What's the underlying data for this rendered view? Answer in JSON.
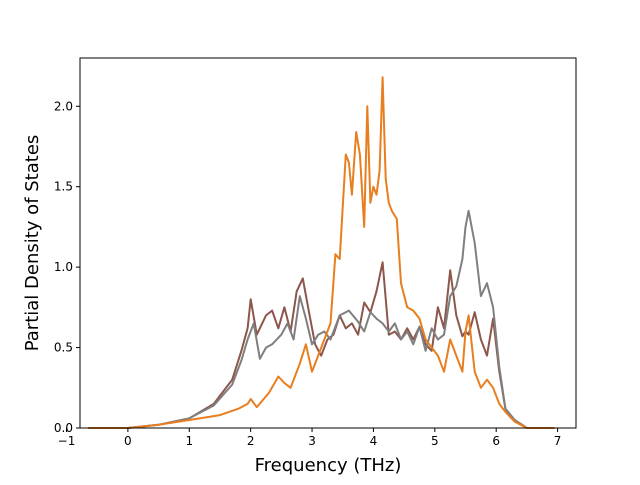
{
  "chart_data": {
    "type": "line",
    "title": "",
    "xlabel": "Frequency (THz)",
    "ylabel": "Partial Density of States",
    "xlim": [
      -0.78,
      7.3
    ],
    "ylim": [
      0,
      2.3
    ],
    "xticks": [
      -1,
      0,
      1,
      2,
      3,
      4,
      5,
      6,
      7
    ],
    "yticks": [
      0.0,
      0.5,
      1.0,
      1.5,
      2.0
    ],
    "xtick_labels": [
      "−1",
      "0",
      "1",
      "2",
      "3",
      "4",
      "5",
      "6",
      "7"
    ],
    "ytick_labels": [
      "0.0",
      "0.5",
      "1.0",
      "1.5",
      "2.0"
    ],
    "grid": false,
    "legend": "none",
    "series": [
      {
        "color": "#8c564b",
        "x": [
          -0.65,
          0.0,
          0.5,
          1.0,
          1.4,
          1.7,
          1.85,
          1.95,
          2.0,
          2.1,
          2.25,
          2.35,
          2.45,
          2.55,
          2.65,
          2.75,
          2.85,
          2.95,
          3.05,
          3.15,
          3.25,
          3.35,
          3.45,
          3.55,
          3.65,
          3.75,
          3.85,
          3.95,
          4.05,
          4.15,
          4.25,
          4.35,
          4.45,
          4.55,
          4.65,
          4.75,
          4.85,
          4.95,
          5.05,
          5.15,
          5.25,
          5.35,
          5.45,
          5.5,
          5.55,
          5.65,
          5.75,
          5.85,
          5.95,
          6.05,
          6.15,
          6.3,
          6.5,
          6.95
        ],
        "y": [
          0.0,
          0.0,
          0.02,
          0.06,
          0.15,
          0.3,
          0.48,
          0.62,
          0.8,
          0.58,
          0.7,
          0.73,
          0.62,
          0.75,
          0.6,
          0.85,
          0.93,
          0.72,
          0.52,
          0.45,
          0.55,
          0.58,
          0.7,
          0.62,
          0.65,
          0.58,
          0.78,
          0.72,
          0.85,
          1.03,
          0.58,
          0.6,
          0.55,
          0.62,
          0.55,
          0.63,
          0.52,
          0.48,
          0.75,
          0.62,
          0.98,
          0.7,
          0.57,
          0.6,
          0.58,
          0.72,
          0.55,
          0.45,
          0.68,
          0.35,
          0.12,
          0.05,
          0.0,
          0.0
        ]
      },
      {
        "color": "#7f7f7f",
        "x": [
          -0.65,
          0.0,
          0.5,
          1.0,
          1.4,
          1.7,
          1.85,
          1.95,
          2.05,
          2.15,
          2.25,
          2.35,
          2.5,
          2.6,
          2.7,
          2.8,
          2.9,
          3.0,
          3.1,
          3.2,
          3.3,
          3.45,
          3.6,
          3.75,
          3.85,
          3.95,
          4.05,
          4.15,
          4.25,
          4.35,
          4.45,
          4.55,
          4.65,
          4.75,
          4.85,
          4.95,
          5.05,
          5.15,
          5.25,
          5.35,
          5.45,
          5.5,
          5.55,
          5.65,
          5.75,
          5.85,
          5.95,
          6.05,
          6.15,
          6.3,
          6.5,
          6.95
        ],
        "y": [
          0.0,
          0.0,
          0.02,
          0.06,
          0.14,
          0.27,
          0.42,
          0.55,
          0.65,
          0.43,
          0.5,
          0.52,
          0.58,
          0.65,
          0.55,
          0.82,
          0.68,
          0.52,
          0.58,
          0.6,
          0.55,
          0.7,
          0.73,
          0.66,
          0.6,
          0.72,
          0.68,
          0.65,
          0.6,
          0.65,
          0.55,
          0.6,
          0.52,
          0.63,
          0.48,
          0.62,
          0.55,
          0.58,
          0.82,
          0.88,
          1.05,
          1.25,
          1.35,
          1.15,
          0.82,
          0.9,
          0.75,
          0.38,
          0.12,
          0.05,
          0.0,
          0.0
        ]
      },
      {
        "color": "#e87e1f",
        "x": [
          -0.65,
          0.0,
          0.5,
          1.0,
          1.5,
          1.8,
          1.95,
          2.0,
          2.1,
          2.3,
          2.45,
          2.55,
          2.65,
          2.8,
          2.9,
          3.0,
          3.1,
          3.2,
          3.3,
          3.38,
          3.45,
          3.55,
          3.6,
          3.65,
          3.72,
          3.78,
          3.85,
          3.9,
          3.95,
          4.0,
          4.05,
          4.1,
          4.15,
          4.2,
          4.25,
          4.3,
          4.38,
          4.45,
          4.55,
          4.65,
          4.75,
          4.85,
          4.95,
          5.05,
          5.15,
          5.25,
          5.35,
          5.45,
          5.5,
          5.55,
          5.65,
          5.75,
          5.85,
          5.95,
          6.05,
          6.15,
          6.3,
          6.5,
          6.95
        ],
        "y": [
          0.0,
          0.0,
          0.02,
          0.05,
          0.08,
          0.12,
          0.15,
          0.18,
          0.13,
          0.22,
          0.32,
          0.28,
          0.25,
          0.4,
          0.52,
          0.35,
          0.45,
          0.55,
          0.65,
          1.08,
          1.05,
          1.7,
          1.65,
          1.45,
          1.84,
          1.7,
          1.25,
          2.0,
          1.4,
          1.5,
          1.45,
          1.6,
          2.18,
          1.55,
          1.4,
          1.35,
          1.3,
          0.9,
          0.75,
          0.73,
          0.68,
          0.55,
          0.5,
          0.45,
          0.35,
          0.55,
          0.45,
          0.35,
          0.6,
          0.7,
          0.35,
          0.25,
          0.3,
          0.25,
          0.15,
          0.1,
          0.04,
          0.0,
          0.0
        ]
      }
    ]
  }
}
